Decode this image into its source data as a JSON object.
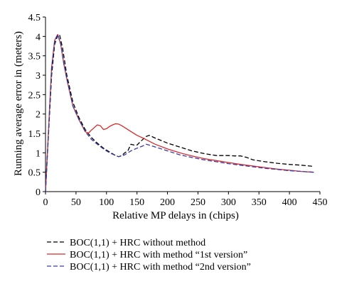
{
  "chart_data": {
    "type": "line",
    "title": "",
    "xlabel": "Relative MP delays in (chips)",
    "ylabel": "Running average error in (meters)",
    "xlim": [
      0,
      450
    ],
    "ylim": [
      0,
      4.5
    ],
    "xticks": [
      0,
      50,
      100,
      150,
      200,
      250,
      300,
      350,
      400,
      450
    ],
    "yticks": [
      0,
      0.5,
      1,
      1.5,
      2,
      2.5,
      3,
      3.5,
      4,
      4.5
    ],
    "ytick_labels": [
      "0",
      "0.5",
      "1",
      "1.5",
      "2",
      "2.5",
      "3",
      "3.5",
      "4",
      "4.5"
    ],
    "grid": false,
    "legend_position": "bottom",
    "series": [
      {
        "name": "BOC(1,1) + HRC without method",
        "color": "#000000",
        "dash": "dashed",
        "x": [
          0,
          5,
          10,
          15,
          20,
          23,
          28,
          35,
          45,
          55,
          65,
          75,
          85,
          95,
          105,
          115,
          120,
          125,
          130,
          135,
          140,
          145,
          150,
          155,
          160,
          165,
          170,
          180,
          200,
          220,
          240,
          260,
          280,
          300,
          310,
          320,
          330,
          340,
          360,
          380,
          400,
          420,
          440
        ],
        "y": [
          0,
          1.5,
          3.0,
          3.8,
          4.03,
          4.05,
          3.7,
          3.0,
          2.3,
          1.9,
          1.6,
          1.4,
          1.25,
          1.12,
          1.02,
          0.93,
          0.9,
          0.93,
          1.0,
          1.05,
          1.22,
          1.2,
          1.2,
          1.28,
          1.35,
          1.42,
          1.45,
          1.38,
          1.25,
          1.15,
          1.05,
          0.98,
          0.93,
          0.93,
          0.92,
          0.92,
          0.88,
          0.82,
          0.77,
          0.73,
          0.7,
          0.68,
          0.65
        ]
      },
      {
        "name": "BOC(1,1) + HRC with method “1st version”",
        "color": "#d62a2a",
        "dash": "solid",
        "x": [
          0,
          5,
          10,
          15,
          20,
          25,
          30,
          35,
          45,
          55,
          65,
          70,
          75,
          80,
          85,
          90,
          95,
          100,
          105,
          110,
          115,
          120,
          125,
          130,
          140,
          150,
          160,
          170,
          180,
          200,
          220,
          240,
          260,
          280,
          300,
          320,
          340,
          360,
          380,
          400,
          420,
          440
        ],
        "y": [
          0,
          1.6,
          3.2,
          3.9,
          4.05,
          3.8,
          3.3,
          2.9,
          2.2,
          1.85,
          1.55,
          1.5,
          1.58,
          1.65,
          1.72,
          1.7,
          1.6,
          1.62,
          1.68,
          1.72,
          1.75,
          1.74,
          1.7,
          1.65,
          1.55,
          1.45,
          1.38,
          1.3,
          1.22,
          1.1,
          1.0,
          0.92,
          0.85,
          0.8,
          0.75,
          0.7,
          0.66,
          0.62,
          0.58,
          0.55,
          0.52,
          0.5
        ]
      },
      {
        "name": "BOC(1,1) + HRC with method “2nd version”",
        "color": "#3a3aa8",
        "dash": "dashed",
        "x": [
          0,
          5,
          10,
          15,
          20,
          25,
          30,
          35,
          45,
          55,
          65,
          75,
          85,
          95,
          105,
          115,
          120,
          125,
          130,
          140,
          150,
          160,
          165,
          170,
          180,
          200,
          220,
          240,
          260,
          280,
          300,
          320,
          340,
          360,
          380,
          400,
          420,
          440
        ],
        "y": [
          0,
          1.6,
          3.2,
          3.9,
          4.05,
          3.8,
          3.3,
          2.9,
          2.2,
          1.85,
          1.55,
          1.35,
          1.22,
          1.1,
          1.0,
          0.93,
          0.9,
          0.92,
          0.95,
          1.05,
          1.12,
          1.18,
          1.22,
          1.2,
          1.15,
          1.05,
          0.95,
          0.88,
          0.82,
          0.77,
          0.72,
          0.68,
          0.64,
          0.6,
          0.57,
          0.54,
          0.52,
          0.5
        ]
      }
    ]
  }
}
